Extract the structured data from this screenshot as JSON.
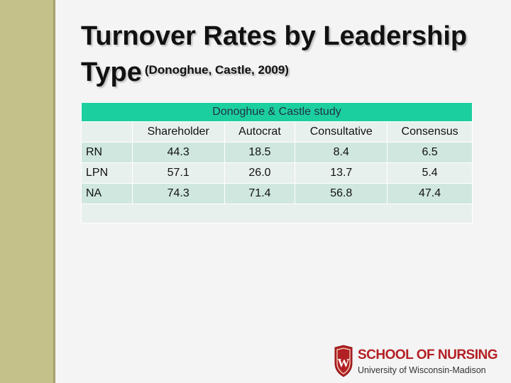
{
  "slide": {
    "title_line1": "Turnover Rates by Leadership",
    "title_line2": "Type",
    "subtitle": "(Donoghue, Castle, 2009)"
  },
  "table": {
    "caption": "Donoghue & Castle study",
    "headers": [
      "",
      "Shareholder",
      "Autocrat",
      "Consultative",
      "Consensus"
    ],
    "rows": [
      {
        "label": "RN",
        "values": [
          "44.3",
          "18.5",
          "8.4",
          "6.5"
        ]
      },
      {
        "label": "LPN",
        "values": [
          "57.1",
          "26.0",
          "13.7",
          "5.4"
        ]
      },
      {
        "label": "NA",
        "values": [
          "74.3",
          "71.4",
          "56.8",
          "47.4"
        ]
      }
    ]
  },
  "logo": {
    "school": "SCHOOL OF NURSING",
    "university": "University of Wisconsin-Madison",
    "crest_letter": "W",
    "brand_color": "#b32024"
  },
  "colors": {
    "header_band": "#1ccf9f",
    "row_light": "#e8f0ee",
    "row_dark": "#cfe7df",
    "sidebar": "#c4c28a"
  }
}
